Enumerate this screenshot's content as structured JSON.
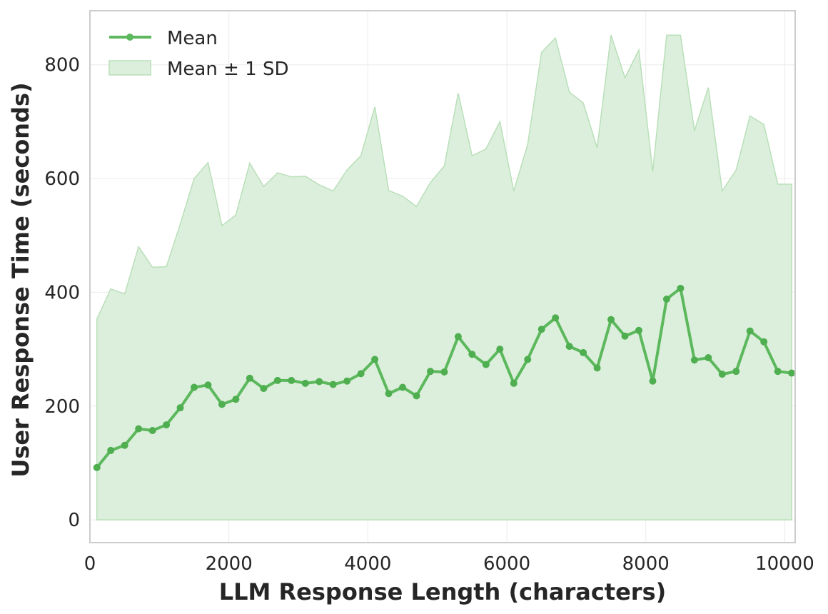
{
  "chart_data": {
    "type": "line",
    "title": "",
    "xlabel": "LLM Response Length (characters)",
    "ylabel": "User Response Time (seconds)",
    "xlim": [
      0,
      10150
    ],
    "ylim": [
      -40,
      895
    ],
    "xticks": [
      0,
      2000,
      4000,
      6000,
      8000,
      10000
    ],
    "yticks": [
      0,
      200,
      400,
      600,
      800
    ],
    "grid": true,
    "legend_position": "upper left",
    "legend": [
      "Mean",
      "Mean ± 1 SD"
    ],
    "colors": {
      "mean": "#5cb85c",
      "band_fill": "#dcefdc",
      "band_edge": "#b9dfb9"
    },
    "x": [
      100,
      300,
      500,
      700,
      900,
      1100,
      1300,
      1500,
      1700,
      1900,
      2100,
      2300,
      2500,
      2700,
      2900,
      3100,
      3300,
      3500,
      3700,
      3900,
      4100,
      4300,
      4500,
      4700,
      4900,
      5100,
      5300,
      5500,
      5700,
      5900,
      6100,
      6300,
      6500,
      6700,
      6900,
      7100,
      7300,
      7500,
      7700,
      7900,
      8100,
      8300,
      8500,
      8700,
      8900,
      9100,
      9300,
      9500,
      9700,
      9900,
      10100
    ],
    "series": [
      {
        "name": "Mean",
        "values": [
          92,
          122,
          131,
          160,
          157,
          167,
          197,
          233,
          237,
          203,
          212,
          249,
          231,
          245,
          245,
          240,
          243,
          238,
          244,
          257,
          282,
          222,
          233,
          218,
          261,
          260,
          322,
          291,
          273,
          300,
          240,
          282,
          335,
          355,
          305,
          294,
          267,
          352,
          323,
          333,
          244,
          388,
          407,
          281,
          285,
          256,
          261,
          332,
          313,
          261,
          258
        ]
      },
      {
        "name": "Mean + 1 SD",
        "values": [
          353,
          406,
          397,
          480,
          444,
          445,
          520,
          600,
          628,
          517,
          536,
          627,
          586,
          610,
          603,
          604,
          589,
          578,
          615,
          640,
          726,
          579,
          569,
          551,
          593,
          622,
          750,
          640,
          652,
          700,
          578,
          660,
          822,
          847,
          752,
          733,
          654,
          852,
          777,
          826,
          612,
          852,
          852,
          684,
          760,
          578,
          615,
          710,
          695,
          590,
          590
        ]
      },
      {
        "name": "Mean - 1 SD (clipped)",
        "values": [
          0,
          0,
          0,
          0,
          0,
          0,
          0,
          0,
          0,
          0,
          0,
          0,
          0,
          0,
          0,
          0,
          0,
          0,
          0,
          0,
          0,
          0,
          0,
          0,
          0,
          0,
          0,
          0,
          0,
          0,
          0,
          0,
          0,
          0,
          0,
          0,
          0,
          0,
          0,
          0,
          0,
          0,
          0,
          0,
          0,
          0,
          0,
          0,
          0,
          0,
          0
        ]
      }
    ]
  }
}
